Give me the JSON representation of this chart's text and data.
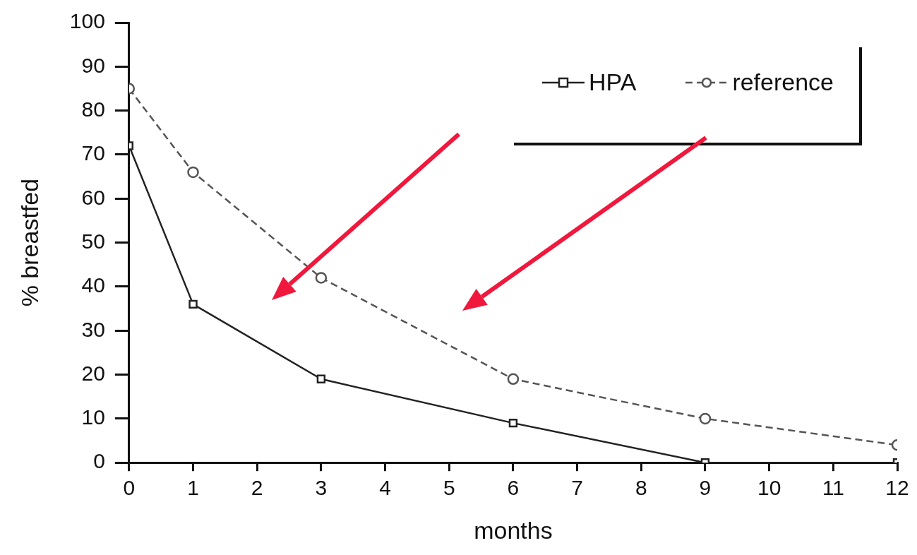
{
  "chart_data": {
    "type": "line",
    "xlabel": "months",
    "ylabel": "% breastfed",
    "x": [
      0,
      1,
      3,
      6,
      9,
      12
    ],
    "series": [
      {
        "name": "HPA",
        "color": "#222222",
        "values": [
          72,
          36,
          19,
          9,
          0,
          0
        ],
        "marker": "square",
        "line_style": "solid"
      },
      {
        "name": "reference",
        "color": "#555555",
        "values": [
          85,
          66,
          42,
          19,
          10,
          4
        ],
        "marker": "circle",
        "line_style": "dashed"
      }
    ],
    "xlim": [
      0,
      12
    ],
    "xticks": [
      0,
      1,
      2,
      3,
      4,
      5,
      6,
      7,
      8,
      9,
      10,
      11,
      12
    ],
    "ylim": [
      0,
      100
    ],
    "yticks": [
      0,
      10,
      20,
      30,
      40,
      50,
      60,
      70,
      80,
      90,
      100
    ],
    "legend": "top right"
  }
}
